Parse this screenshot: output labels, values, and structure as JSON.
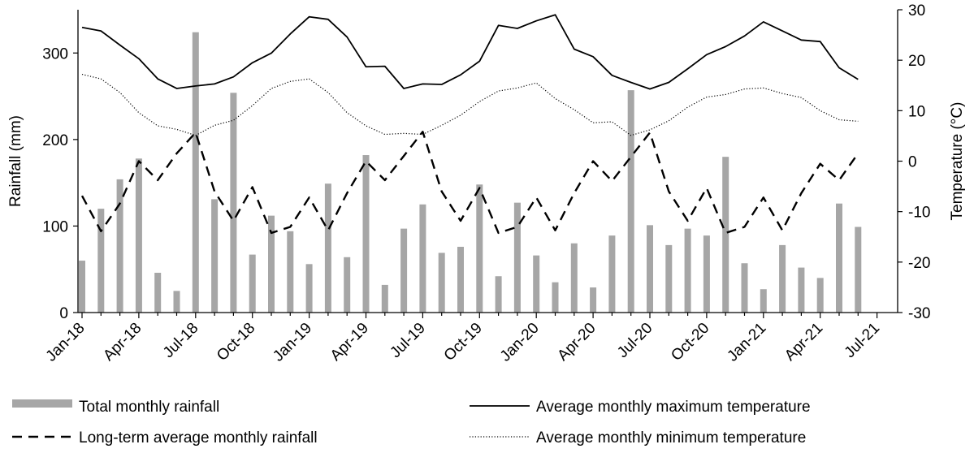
{
  "chart_data": {
    "type": "bar+line",
    "title": "",
    "x": [
      "Jan-18",
      "Feb-18",
      "Mar-18",
      "Apr-18",
      "May-18",
      "Jun-18",
      "Jul-18",
      "Aug-18",
      "Sep-18",
      "Oct-18",
      "Nov-18",
      "Dec-18",
      "Jan-19",
      "Feb-19",
      "Mar-19",
      "Apr-19",
      "May-19",
      "Jun-19",
      "Jul-19",
      "Aug-19",
      "Sep-19",
      "Oct-19",
      "Nov-19",
      "Dec-19",
      "Jan-20",
      "Feb-20",
      "Mar-20",
      "Apr-20",
      "May-20",
      "Jun-20",
      "Jul-20",
      "Aug-20",
      "Sep-20",
      "Oct-20",
      "Nov-20",
      "Dec-20",
      "Jan-21",
      "Feb-21",
      "Mar-21",
      "Apr-21",
      "May-21",
      "Jun-21",
      "Jul-21"
    ],
    "xtick_labels": [
      "Jan-18",
      "Apr-18",
      "Jul-18",
      "Oct-18",
      "Jan-19",
      "Apr-19",
      "Jul-19",
      "Oct-19",
      "Jan-20",
      "Apr-20",
      "Jul-20",
      "Oct-20",
      "Jan-21",
      "Apr-21",
      "Jul-21"
    ],
    "ylabel_left": "Rainfall (mm)",
    "ylim_left": [
      0,
      350
    ],
    "yticks_left": [
      0,
      100,
      200,
      300
    ],
    "ylabel_right": "Temperature (°C)",
    "ylim_right": [
      -30,
      30
    ],
    "yticks_right": [
      -30,
      -20,
      -10,
      0,
      10,
      20,
      30
    ],
    "grid": false,
    "legend_position": "bottom",
    "series": [
      {
        "name": "Total monthly rainfall",
        "kind": "bar",
        "axis": "left",
        "color": "#a6a6a6",
        "values": [
          60,
          120,
          154,
          178,
          46,
          25,
          324,
          131,
          254,
          67,
          112,
          94,
          56,
          149,
          64,
          182,
          32,
          97,
          125,
          69,
          76,
          148,
          42,
          127,
          66,
          35,
          80,
          29,
          89,
          257,
          101,
          78,
          97,
          89,
          180,
          57,
          27,
          78,
          52,
          40,
          126,
          99,
          null
        ]
      },
      {
        "name": "Long-term average monthly rainfall",
        "kind": "line",
        "style": "dashed",
        "axis": "left",
        "color": "#000000",
        "values": [
          135,
          94,
          126,
          175,
          153,
          184,
          208,
          140,
          106,
          145,
          92,
          99,
          133,
          95,
          138,
          175,
          153,
          181,
          209,
          140,
          106,
          144,
          92,
          99,
          133,
          95,
          138,
          175,
          152,
          180,
          208,
          140,
          106,
          144,
          92,
          99,
          133,
          95,
          138,
          172,
          153,
          184,
          null
        ]
      },
      {
        "name": "Average monthly maximum temperature",
        "kind": "line",
        "style": "solid",
        "axis": "right",
        "color": "#000000",
        "values": [
          26.5,
          25.8,
          23.0,
          20.3,
          16.3,
          14.4,
          14.9,
          15.3,
          16.7,
          19.5,
          21.4,
          25.2,
          28.6,
          28.1,
          24.6,
          18.7,
          18.8,
          14.4,
          15.3,
          15.2,
          17.1,
          19.8,
          26.9,
          26.3,
          27.8,
          29.0,
          22.2,
          20.7,
          17.0,
          15.6,
          14.3,
          15.6,
          18.3,
          21.1,
          22.7,
          24.8,
          27.6,
          25.8,
          24.0,
          23.7,
          18.5,
          16.2,
          null
        ]
      },
      {
        "name": "Average monthly minimum temperature",
        "kind": "line",
        "style": "dotted",
        "axis": "right",
        "color": "#000000",
        "values": [
          17.2,
          16.3,
          13.6,
          9.6,
          7.0,
          6.3,
          5.1,
          7.1,
          8.1,
          11.0,
          14.4,
          15.8,
          16.3,
          13.6,
          9.6,
          7.0,
          5.3,
          5.5,
          5.3,
          7.1,
          9.1,
          11.8,
          13.9,
          14.5,
          15.5,
          12.4,
          10.2,
          7.6,
          7.8,
          5.1,
          6.2,
          8.0,
          10.7,
          12.7,
          13.2,
          14.3,
          14.5,
          13.4,
          12.6,
          10.0,
          8.2,
          7.9,
          null
        ]
      }
    ]
  }
}
